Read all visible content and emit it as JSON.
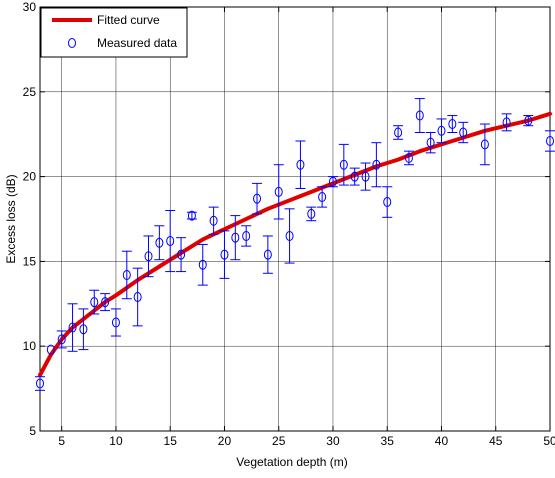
{
  "chart_data": {
    "type": "scatter",
    "title": "",
    "xlabel": "Vegetation depth (m)",
    "ylabel": "Excess loss (dB)",
    "xlim": [
      3,
      50
    ],
    "ylim": [
      5,
      30
    ],
    "xticks": [
      5,
      10,
      15,
      20,
      25,
      30,
      35,
      40,
      45,
      50
    ],
    "yticks": [
      5,
      10,
      15,
      20,
      25,
      30
    ],
    "grid": true,
    "legend_position": "top-left",
    "series": [
      {
        "name": "Fitted curve",
        "kind": "line",
        "color": "#e00000",
        "x": [
          3,
          4,
          5,
          6,
          7,
          8,
          9,
          10,
          12,
          14,
          16,
          18,
          20,
          22,
          24,
          26,
          28,
          30,
          32,
          34,
          36,
          38,
          40,
          42,
          44,
          46,
          48,
          50
        ],
        "y": [
          8.3,
          9.5,
          10.4,
          11.1,
          11.6,
          12.1,
          12.6,
          13.0,
          13.9,
          14.7,
          15.5,
          16.3,
          16.9,
          17.5,
          18.1,
          18.6,
          19.1,
          19.6,
          20.1,
          20.6,
          21.0,
          21.5,
          21.9,
          22.3,
          22.7,
          23.0,
          23.3,
          23.7
        ]
      },
      {
        "name": "Measured data",
        "kind": "errorbar",
        "color": "#0000ff",
        "x": [
          3,
          4,
          5,
          6,
          7,
          8,
          9,
          10,
          11,
          12,
          13,
          14,
          15,
          16,
          17,
          18,
          19,
          20,
          21,
          22,
          23,
          24,
          25,
          26,
          27,
          28,
          29,
          30,
          31,
          32,
          33,
          34,
          35,
          36,
          37,
          38,
          39,
          40,
          41,
          42,
          44,
          46,
          48,
          50
        ],
        "y": [
          7.8,
          9.8,
          10.4,
          11.1,
          11.0,
          12.6,
          12.6,
          11.4,
          14.2,
          12.9,
          15.3,
          16.1,
          16.2,
          15.4,
          17.7,
          14.8,
          17.4,
          15.4,
          16.4,
          16.5,
          18.7,
          15.4,
          19.1,
          16.5,
          20.7,
          17.8,
          18.8,
          19.7,
          20.7,
          20.0,
          20.0,
          20.7,
          18.5,
          22.6,
          21.1,
          23.6,
          22.0,
          22.7,
          23.1,
          22.6,
          21.9,
          23.2,
          23.3,
          22.1
        ],
        "err": [
          0.4,
          0.0,
          0.5,
          1.4,
          1.2,
          0.7,
          0.5,
          0.8,
          1.4,
          1.7,
          1.2,
          1.0,
          1.8,
          1.0,
          0.2,
          1.2,
          0.8,
          1.4,
          1.3,
          0.6,
          0.9,
          1.1,
          1.6,
          1.6,
          1.4,
          0.4,
          0.6,
          0.3,
          1.2,
          0.5,
          0.8,
          1.3,
          0.9,
          0.4,
          0.4,
          1.0,
          0.6,
          0.7,
          0.5,
          0.6,
          1.2,
          0.5,
          0.3,
          0.6
        ]
      }
    ]
  }
}
